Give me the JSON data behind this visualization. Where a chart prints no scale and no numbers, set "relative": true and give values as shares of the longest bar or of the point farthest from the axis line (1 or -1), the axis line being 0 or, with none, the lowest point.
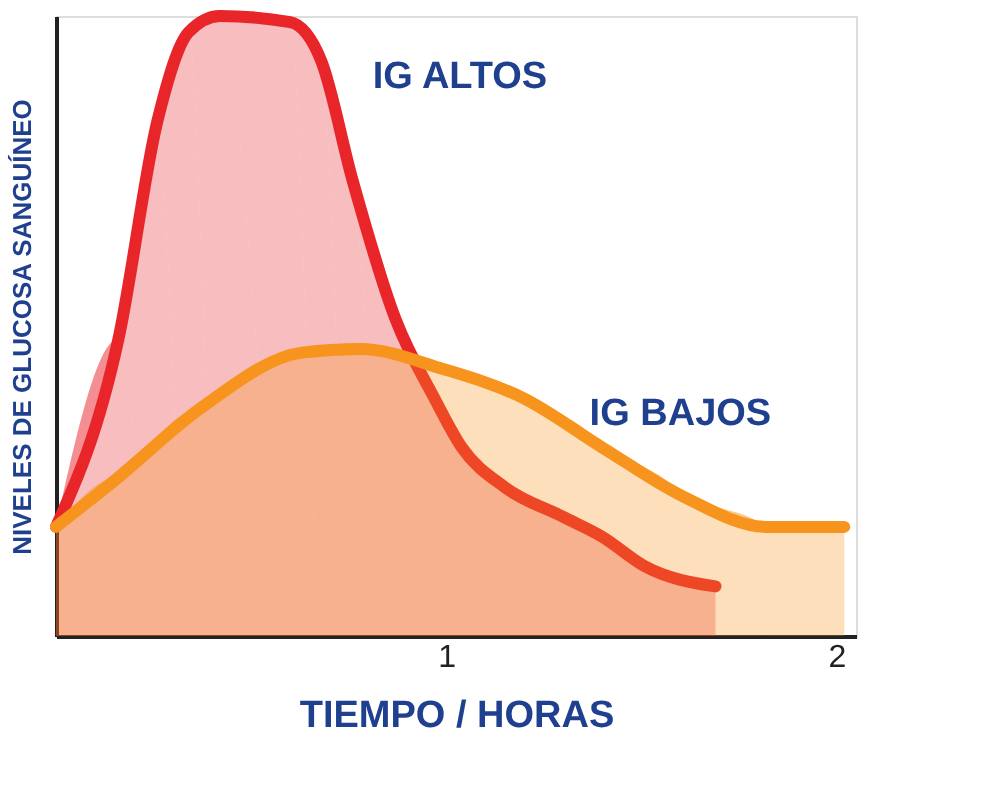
{
  "chart_data": {
    "type": "area",
    "relative": true,
    "xlabel": "TIEMPO / HORAS",
    "ylabel": "NIVELES DE GLUCOSA SANGUÍNEO",
    "xlim": [
      0,
      2.05
    ],
    "xticks": [
      1,
      2
    ],
    "grid": false,
    "series": [
      {
        "name": "IG ALTOS",
        "color": "#e8262a",
        "x": [
          0,
          0.16,
          0.26,
          0.34,
          0.42,
          0.6,
          0.68,
          0.76,
          0.87,
          0.97,
          1.04,
          1.15,
          1.3,
          1.4,
          1.51,
          1.69
        ],
        "values": [
          0.176,
          0.479,
          0.831,
          0.974,
          1,
          0.99,
          0.927,
          0.735,
          0.511,
          0.383,
          0.304,
          0.24,
          0.192,
          0.16,
          0.112,
          0.08
        ]
      },
      {
        "name": "IG BAJOS",
        "color": "#f7941d",
        "x": [
          0,
          0.16,
          0.37,
          0.63,
          0.78,
          0.99,
          1.2,
          1.4,
          1.61,
          1.82,
          2.02
        ],
        "values": [
          0.176,
          0.256,
          0.367,
          0.457,
          0.463,
          0.431,
          0.383,
          0.304,
          0.224,
          0.176,
          0.176
        ]
      }
    ]
  }
}
